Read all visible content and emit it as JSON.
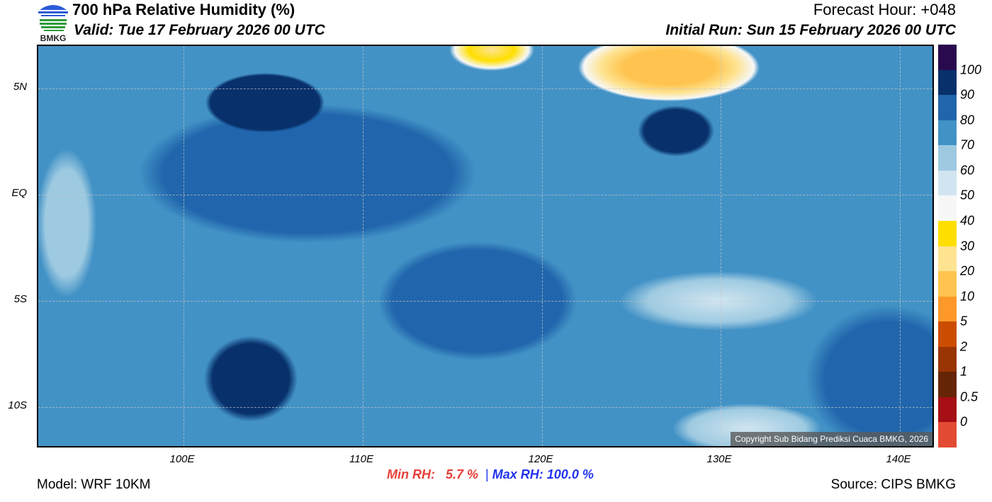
{
  "header": {
    "title": "700 hPa Relative Humidity (%)",
    "valid": "Valid: Tue 17 February 2026 00 UTC",
    "forecast_hour": "Forecast Hour: +048",
    "initial_run": "Initial Run: Sun 15 February 2026 00 UTC",
    "logo_text": "BMKG"
  },
  "map": {
    "lat_labels": [
      "5N",
      "EQ",
      "5S",
      "10S"
    ],
    "lon_labels": [
      "100E",
      "110E",
      "120E",
      "130E",
      "140E"
    ],
    "copyright": "Copyright Sub Bidang Prediksi Cuaca BMKG, 2026"
  },
  "colorbar": {
    "labels": [
      "100",
      "90",
      "80",
      "70",
      "60",
      "50",
      "40",
      "30",
      "20",
      "10",
      "5",
      "2",
      "1",
      "0.5",
      "0"
    ],
    "colors": [
      "#2a0a4e",
      "#08306b",
      "#2166ac",
      "#4292c6",
      "#9ecae1",
      "#d1e5f0",
      "#f7f7f7",
      "#ffdf00",
      "#fee391",
      "#fec44f",
      "#fe9929",
      "#cc4c02",
      "#993404",
      "#662506",
      "#a50f15",
      "#e34a33"
    ]
  },
  "footer": {
    "model": "Model: WRF 10KM",
    "min_label": "Min RH:",
    "min_value": "5.7 %",
    "separator": "|",
    "max_label": "Max RH:",
    "max_value": "100.0 %",
    "source": "Source: CIPS BMKG"
  }
}
